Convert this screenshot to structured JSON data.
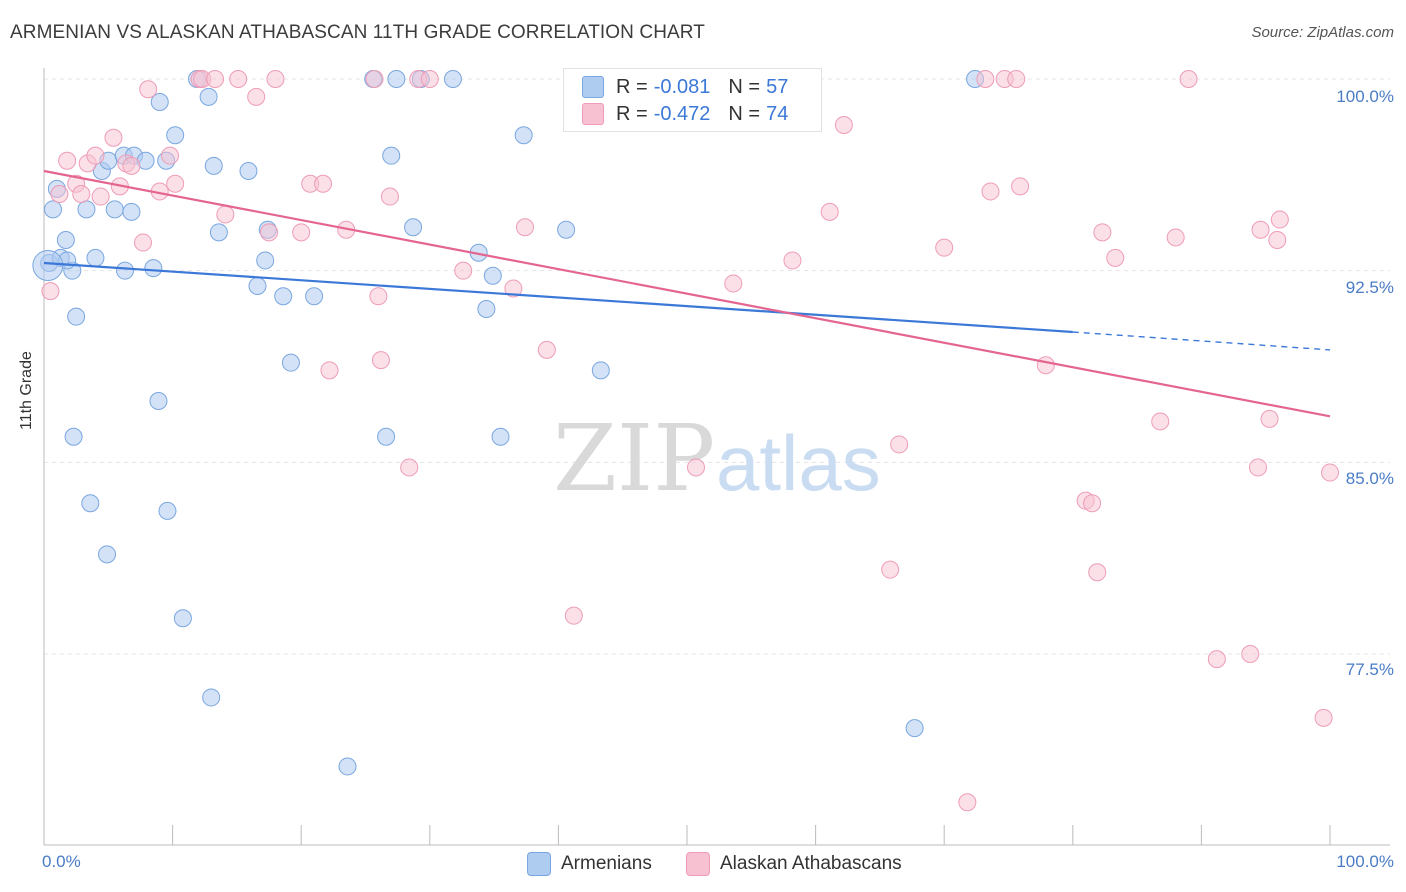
{
  "title": "ARMENIAN VS ALASKAN ATHABASCAN 11TH GRADE CORRELATION CHART",
  "source": "Source: ZipAtlas.com",
  "watermark": {
    "zip": "ZIP",
    "atlas": "atlas"
  },
  "legend": {
    "armenians": {
      "r_label": "R =",
      "r_value": "-0.081",
      "n_label": "N =",
      "n_value": "57"
    },
    "athabascans": {
      "r_label": "R =",
      "r_value": "-0.472",
      "n_label": "N =",
      "n_value": "74"
    }
  },
  "bottom_legend": {
    "armenians": "Armenians",
    "athabascans": "Alaskan Athabascans"
  },
  "colors": {
    "blue_fill": "#aecbf0",
    "blue_stroke": "#7aa7e0",
    "blue_line": "#3b78d8",
    "pink_fill": "#f7c1d2",
    "pink_stroke": "#ee9cb7",
    "pink_line": "#e46590",
    "grid": "#e4e4e4",
    "tick_text": "#4a7cc6"
  },
  "chart_data": {
    "type": "scatter",
    "title": "ARMENIAN VS ALASKAN ATHABASCAN 11TH GRADE CORRELATION CHART",
    "xlabel": "",
    "ylabel": "11th Grade",
    "xlim": [
      0,
      100
    ],
    "ylim": [
      71.0,
      101.0
    ],
    "x_tick_labels": [
      "0.0%",
      "100.0%"
    ],
    "y_ticks": [
      77.5,
      85.0,
      92.5,
      100.0
    ],
    "y_tick_labels": [
      "77.5%",
      "85.0%",
      "92.5%",
      "100.0%"
    ],
    "grid": true,
    "series": [
      {
        "name": "Armenians",
        "r": -0.081,
        "n": 57,
        "trend": {
          "x0": 0,
          "y0": 92.8,
          "x1": 80,
          "y1": 90.1,
          "dashed_to_x": 100,
          "dashed_to_y": 89.4
        },
        "points": [
          [
            0.4,
            92.8
          ],
          [
            0.7,
            94.9
          ],
          [
            1.0,
            95.7
          ],
          [
            1.3,
            93.0
          ],
          [
            1.7,
            93.7
          ],
          [
            2.2,
            92.5
          ],
          [
            2.5,
            90.7
          ],
          [
            3.3,
            94.9
          ],
          [
            4.0,
            93.0
          ],
          [
            4.5,
            96.4
          ],
          [
            5.0,
            96.8
          ],
          [
            5.5,
            94.9
          ],
          [
            6.2,
            97.0
          ],
          [
            6.3,
            92.5
          ],
          [
            6.8,
            94.8
          ],
          [
            7.0,
            97.0
          ],
          [
            7.9,
            96.8
          ],
          [
            8.5,
            92.6
          ],
          [
            9.0,
            99.1
          ],
          [
            9.5,
            96.8
          ],
          [
            10.2,
            97.8
          ],
          [
            11.9,
            100.0
          ],
          [
            12.8,
            99.3
          ],
          [
            13.2,
            96.6
          ],
          [
            13.6,
            94.0
          ],
          [
            15.9,
            96.4
          ],
          [
            16.6,
            91.9
          ],
          [
            17.2,
            92.9
          ],
          [
            17.4,
            94.1
          ],
          [
            18.6,
            91.5
          ],
          [
            19.2,
            88.9
          ],
          [
            21.0,
            91.5
          ],
          [
            25.6,
            100.0
          ],
          [
            27.0,
            97.0
          ],
          [
            27.4,
            100.0
          ],
          [
            28.7,
            94.2
          ],
          [
            29.3,
            100.0
          ],
          [
            31.8,
            100.0
          ],
          [
            33.8,
            93.2
          ],
          [
            34.4,
            91.0
          ],
          [
            34.9,
            92.3
          ],
          [
            35.5,
            86.0
          ],
          [
            37.3,
            97.8
          ],
          [
            40.6,
            94.1
          ],
          [
            43.3,
            88.6
          ],
          [
            2.3,
            86.0
          ],
          [
            3.6,
            83.4
          ],
          [
            4.9,
            81.4
          ],
          [
            8.9,
            87.4
          ],
          [
            9.6,
            83.1
          ],
          [
            10.8,
            78.9
          ],
          [
            13.0,
            75.8
          ],
          [
            23.6,
            73.1
          ],
          [
            26.6,
            86.0
          ],
          [
            67.7,
            74.6
          ],
          [
            72.4,
            100.0
          ],
          [
            1.8,
            92.9
          ]
        ],
        "big_point": [
          0.3,
          92.7
        ]
      },
      {
        "name": "Alaskan Athabascans",
        "r": -0.472,
        "n": 74,
        "trend": {
          "x0": 0,
          "y0": 96.4,
          "x1": 100,
          "y1": 86.8
        },
        "points": [
          [
            0.5,
            91.7
          ],
          [
            1.2,
            95.5
          ],
          [
            1.8,
            96.8
          ],
          [
            2.5,
            95.9
          ],
          [
            2.9,
            95.5
          ],
          [
            3.4,
            96.7
          ],
          [
            4.0,
            97.0
          ],
          [
            4.4,
            95.4
          ],
          [
            5.4,
            97.7
          ],
          [
            5.9,
            95.8
          ],
          [
            6.4,
            96.7
          ],
          [
            6.8,
            96.6
          ],
          [
            7.7,
            93.6
          ],
          [
            8.1,
            99.6
          ],
          [
            9.0,
            95.6
          ],
          [
            9.8,
            97.0
          ],
          [
            10.2,
            95.9
          ],
          [
            12.1,
            100.0
          ],
          [
            12.3,
            100.0
          ],
          [
            14.1,
            94.7
          ],
          [
            15.1,
            100.0
          ],
          [
            16.5,
            99.3
          ],
          [
            17.5,
            94.0
          ],
          [
            18.0,
            100.0
          ],
          [
            20.7,
            95.9
          ],
          [
            21.7,
            95.9
          ],
          [
            22.2,
            88.6
          ],
          [
            23.5,
            94.1
          ],
          [
            25.7,
            100.0
          ],
          [
            26.0,
            91.5
          ],
          [
            26.2,
            89.0
          ],
          [
            26.9,
            95.4
          ],
          [
            28.4,
            84.8
          ],
          [
            29.1,
            100.0
          ],
          [
            30.0,
            100.0
          ],
          [
            32.6,
            92.5
          ],
          [
            36.5,
            91.8
          ],
          [
            37.4,
            94.2
          ],
          [
            39.1,
            89.4
          ],
          [
            41.2,
            79.0
          ],
          [
            50.7,
            84.8
          ],
          [
            53.6,
            92.0
          ],
          [
            58.2,
            92.9
          ],
          [
            61.1,
            94.8
          ],
          [
            62.2,
            98.2
          ],
          [
            65.8,
            80.8
          ],
          [
            66.5,
            85.7
          ],
          [
            70.0,
            93.4
          ],
          [
            71.8,
            71.7
          ],
          [
            73.2,
            100.0
          ],
          [
            73.6,
            95.6
          ],
          [
            74.7,
            100.0
          ],
          [
            75.6,
            100.0
          ],
          [
            75.9,
            95.8
          ],
          [
            77.9,
            88.8
          ],
          [
            81.0,
            83.5
          ],
          [
            81.5,
            83.4
          ],
          [
            81.9,
            80.7
          ],
          [
            82.3,
            94.0
          ],
          [
            83.3,
            93.0
          ],
          [
            86.8,
            86.6
          ],
          [
            88.0,
            93.8
          ],
          [
            89.0,
            100.0
          ],
          [
            91.2,
            77.3
          ],
          [
            93.8,
            77.5
          ],
          [
            94.4,
            84.8
          ],
          [
            94.6,
            94.1
          ],
          [
            95.3,
            86.7
          ],
          [
            95.9,
            93.7
          ],
          [
            96.1,
            94.5
          ],
          [
            100.0,
            84.6
          ],
          [
            99.5,
            75.0
          ],
          [
            20.0,
            94.0
          ],
          [
            13.3,
            100.0
          ]
        ]
      }
    ]
  }
}
